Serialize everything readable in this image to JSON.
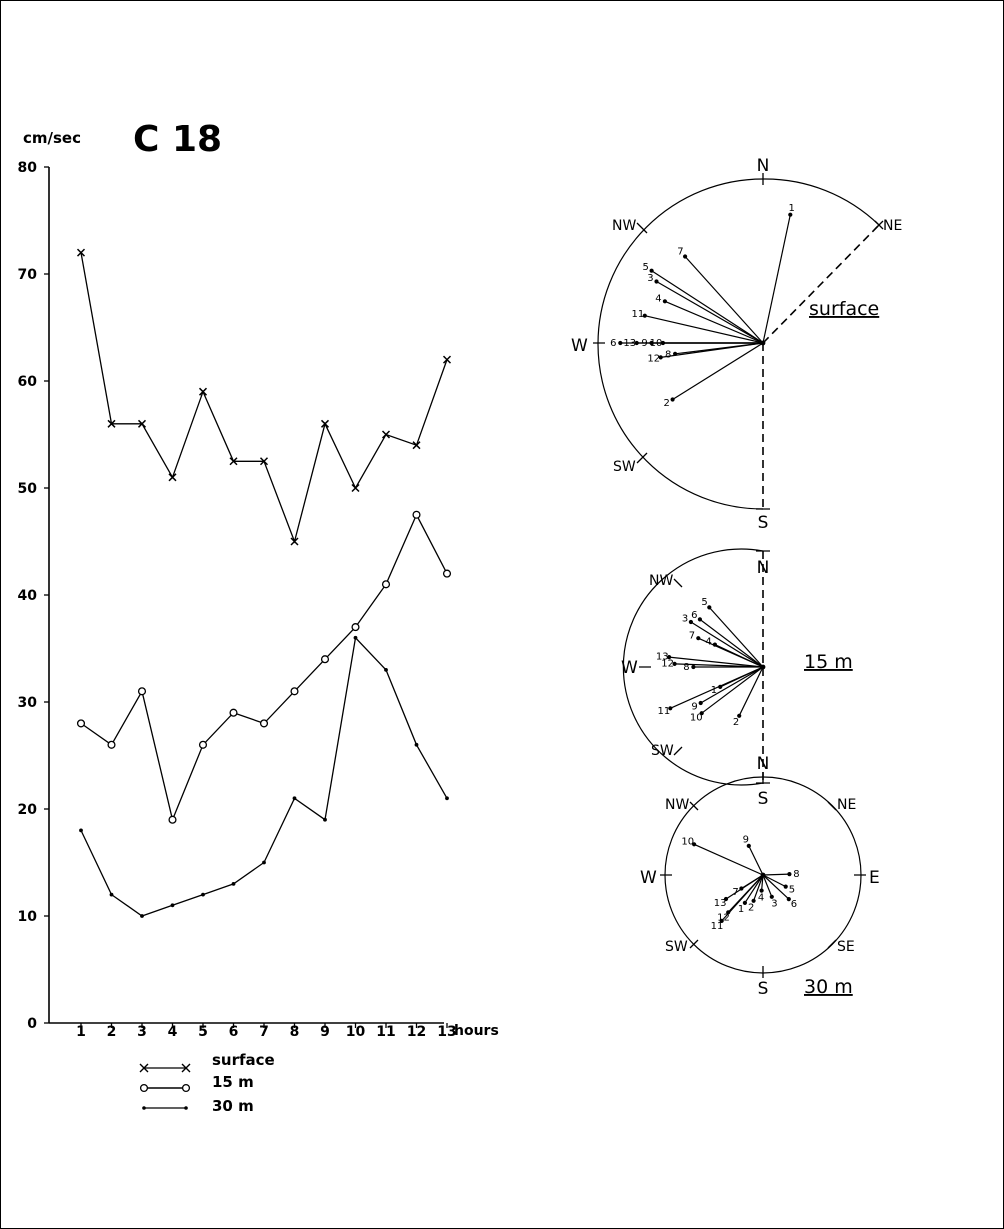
{
  "chart_data": [
    {
      "type": "line",
      "title": "C 18",
      "ylabel": "cm/sec",
      "xlabel": "hours",
      "ylim": [
        0,
        80
      ],
      "yticks": [
        0,
        10,
        20,
        30,
        40,
        50,
        60,
        70,
        80
      ],
      "x": [
        1,
        2,
        3,
        4,
        5,
        6,
        7,
        8,
        9,
        10,
        11,
        12,
        13
      ],
      "series": [
        {
          "name": "surface",
          "marker": "x",
          "values": [
            72,
            56,
            56,
            51,
            59,
            52.5,
            52.5,
            45,
            56,
            50,
            55,
            54,
            62
          ]
        },
        {
          "name": "15 m",
          "marker": "o",
          "values": [
            28,
            26,
            31,
            19,
            26,
            29,
            28,
            31,
            34,
            37,
            41,
            47.5,
            42
          ]
        },
        {
          "name": "30 m",
          "marker": "dot",
          "values": [
            18,
            12,
            10,
            11,
            12,
            13,
            15,
            21,
            19,
            36,
            33,
            26,
            21
          ]
        }
      ],
      "legend": "bottom-left"
    },
    {
      "type": "scatter",
      "subtype": "compass-rose",
      "title": "surface",
      "directions": [
        "N",
        "NE",
        "NW",
        "W",
        "SW",
        "S"
      ],
      "vectors": [
        {
          "label": "1",
          "bearing": 12,
          "relative_length": 0.8
        },
        {
          "label": "2",
          "bearing": 238,
          "relative_length": 0.65
        },
        {
          "label": "3",
          "bearing": 300,
          "relative_length": 0.75
        },
        {
          "label": "4",
          "bearing": 293,
          "relative_length": 0.65
        },
        {
          "label": "5",
          "bearing": 303,
          "relative_length": 0.81
        },
        {
          "label": "6",
          "bearing": 270,
          "relative_length": 0.87
        },
        {
          "label": "7",
          "bearing": 318,
          "relative_length": 0.71
        },
        {
          "label": "8",
          "bearing": 263,
          "relative_length": 0.54
        },
        {
          "label": "9",
          "bearing": 270,
          "relative_length": 0.68
        },
        {
          "label": "10",
          "bearing": 270,
          "relative_length": 0.61
        },
        {
          "label": "11",
          "bearing": 283,
          "relative_length": 0.74
        },
        {
          "label": "12",
          "bearing": 262,
          "relative_length": 0.63
        },
        {
          "label": "13",
          "bearing": 270,
          "relative_length": 0.77
        }
      ]
    },
    {
      "type": "scatter",
      "subtype": "compass-rose",
      "title": "15 m",
      "directions": [
        "N",
        "NW",
        "W",
        "SW",
        "S"
      ],
      "vectors": [
        {
          "label": "1",
          "bearing": 245,
          "relative_length": 0.4
        },
        {
          "label": "2",
          "bearing": 206,
          "relative_length": 0.46
        },
        {
          "label": "3",
          "bearing": 302,
          "relative_length": 0.72
        },
        {
          "label": "4",
          "bearing": 295,
          "relative_length": 0.45
        },
        {
          "label": "5",
          "bearing": 318,
          "relative_length": 0.68
        },
        {
          "label": "6",
          "bearing": 307,
          "relative_length": 0.67
        },
        {
          "label": "7",
          "bearing": 294,
          "relative_length": 0.6
        },
        {
          "label": "8",
          "bearing": 270,
          "relative_length": 0.59
        },
        {
          "label": "9",
          "bearing": 240,
          "relative_length": 0.61
        },
        {
          "label": "10",
          "bearing": 233,
          "relative_length": 0.65
        },
        {
          "label": "11",
          "bearing": 246,
          "relative_length": 0.86
        },
        {
          "label": "12",
          "bearing": 272,
          "relative_length": 0.75
        },
        {
          "label": "13",
          "bearing": 276,
          "relative_length": 0.8
        }
      ]
    },
    {
      "type": "scatter",
      "subtype": "compass-rose",
      "title": "30 m",
      "directions": [
        "N",
        "NE",
        "NW",
        "W",
        "E",
        "SW",
        "SE",
        "S"
      ],
      "vectors": [
        {
          "label": "1",
          "bearing": 213,
          "relative_length": 0.34
        },
        {
          "label": "2",
          "bearing": 200,
          "relative_length": 0.28
        },
        {
          "label": "3",
          "bearing": 158,
          "relative_length": 0.24
        },
        {
          "label": "4",
          "bearing": 185,
          "relative_length": 0.16
        },
        {
          "label": "5",
          "bearing": 117,
          "relative_length": 0.26
        },
        {
          "label": "6",
          "bearing": 133,
          "relative_length": 0.36
        },
        {
          "label": "7",
          "bearing": 238,
          "relative_length": 0.26
        },
        {
          "label": "8",
          "bearing": 88,
          "relative_length": 0.27
        },
        {
          "label": "9",
          "bearing": 334,
          "relative_length": 0.33
        },
        {
          "label": "10",
          "bearing": 294,
          "relative_length": 0.77
        },
        {
          "label": "11",
          "bearing": 222,
          "relative_length": 0.63
        },
        {
          "label": "12",
          "bearing": 223,
          "relative_length": 0.52
        },
        {
          "label": "13",
          "bearing": 237,
          "relative_length": 0.45
        }
      ]
    }
  ],
  "colors": {
    "ink": "#000000",
    "background": "#ffffff"
  }
}
